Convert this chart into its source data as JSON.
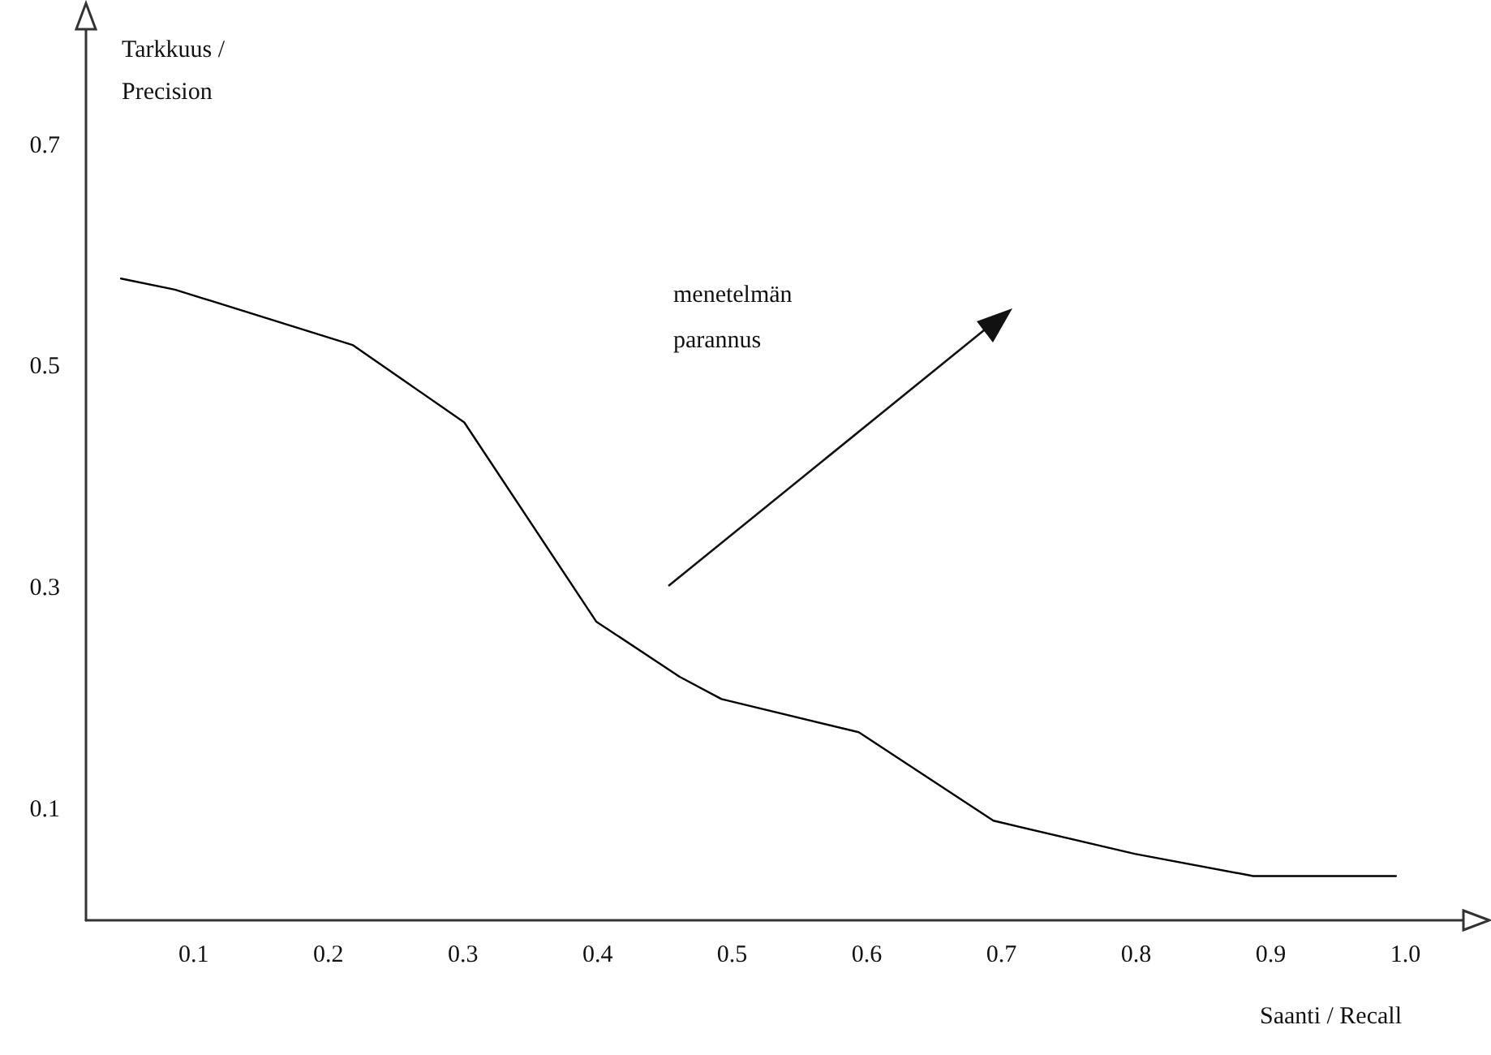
{
  "chart_data": {
    "type": "line",
    "xlabel": "Saanti / Recall",
    "ylabel": "Tarkkuus / Precision",
    "annotations": [
      "menetelmän parannus"
    ],
    "x": [
      0.046,
      0.086,
      0.218,
      0.301,
      0.399,
      0.461,
      0.492,
      0.594,
      0.694,
      0.799,
      0.887,
      0.993
    ],
    "series": [
      {
        "color": "#000000",
        "values": [
          0.58,
          0.57,
          0.52,
          0.45,
          0.27,
          0.22,
          0.2,
          0.17,
          0.09,
          0.06,
          0.04,
          0.04
        ]
      }
    ],
    "xlim": [
      0.02,
      1.06
    ],
    "ylim": [
      0,
      0.82
    ],
    "xticks": [
      0.1,
      0.2,
      0.3,
      0.4,
      0.5,
      0.6,
      0.7,
      0.8,
      0.9,
      {
        "value": 1,
        "label": "1.0"
      }
    ],
    "yticks": [
      0.1,
      0.3,
      0.5,
      0.7
    ],
    "grid": false,
    "marker": "none",
    "line_style": "solid"
  }
}
